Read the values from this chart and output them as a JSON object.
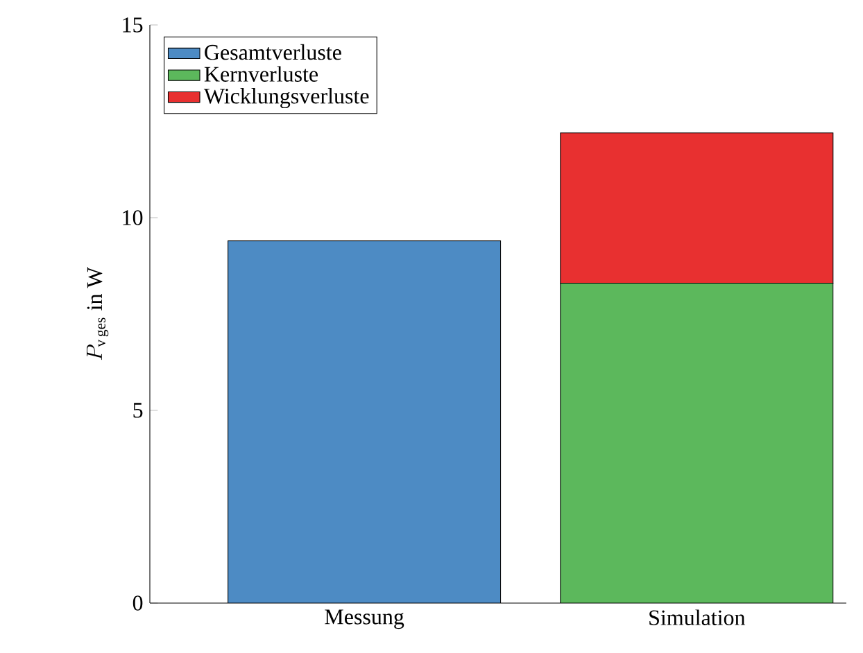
{
  "chart_data": {
    "type": "bar",
    "stacked": true,
    "categories": [
      "Messung",
      "Simulation"
    ],
    "ylabel": "P_{\\mathrm{v\\,ges}}\\ \\mathrm{in\\ W}",
    "ylim": [
      0,
      15
    ],
    "yticks": [
      0,
      5,
      10,
      15
    ],
    "legend": "top left",
    "grid": false,
    "series": [
      {
        "name": "Gesamtverluste",
        "color": "#4d8bc4",
        "values": [
          9.4,
          null
        ]
      },
      {
        "name": "Kernverluste",
        "color": "#5cb85c",
        "values": [
          null,
          8.3
        ]
      },
      {
        "name": "Wicklungsverluste",
        "color": "#e83030",
        "values": [
          null,
          3.9
        ]
      }
    ]
  }
}
